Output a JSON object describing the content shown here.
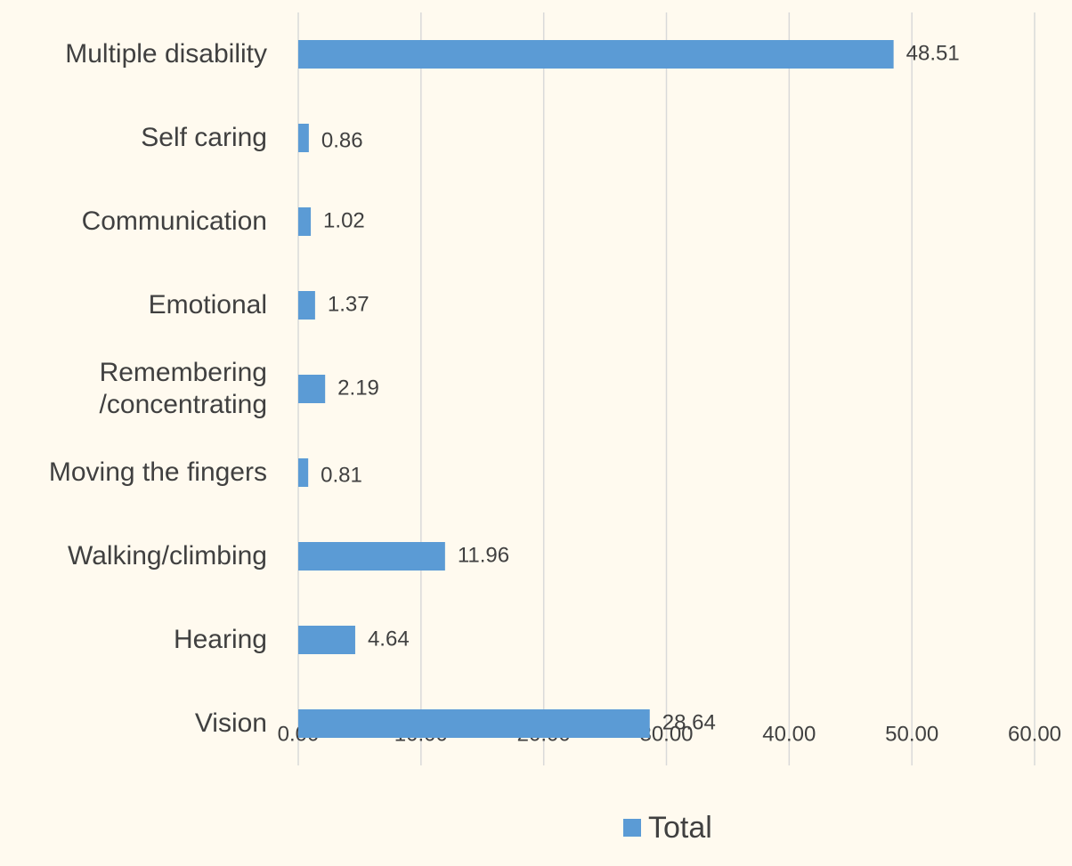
{
  "chart_data": {
    "type": "bar",
    "orientation": "horizontal",
    "categories": [
      "Multiple disability",
      "Self caring",
      "Communication",
      "Emotional",
      "Remembering\n/concentrating",
      "Moving the fingers",
      "Walking/climbing",
      "Hearing",
      "Vision"
    ],
    "series": [
      {
        "name": "Total",
        "color": "#5b9bd5",
        "values": [
          48.51,
          0.86,
          1.02,
          1.37,
          2.19,
          0.81,
          11.96,
          4.64,
          28.64
        ]
      }
    ],
    "xlim": [
      0,
      60
    ],
    "xticks": [
      {
        "value": 0,
        "label": "0.00"
      },
      {
        "value": 10,
        "label": "10.00"
      },
      {
        "value": 20,
        "label": "20.00"
      },
      {
        "value": 30,
        "label": "30.00"
      },
      {
        "value": 40,
        "label": "40.00"
      },
      {
        "value": 50,
        "label": "50.00"
      },
      {
        "value": 60,
        "label": "60.00"
      }
    ],
    "grid": true,
    "legend": "bottom"
  }
}
